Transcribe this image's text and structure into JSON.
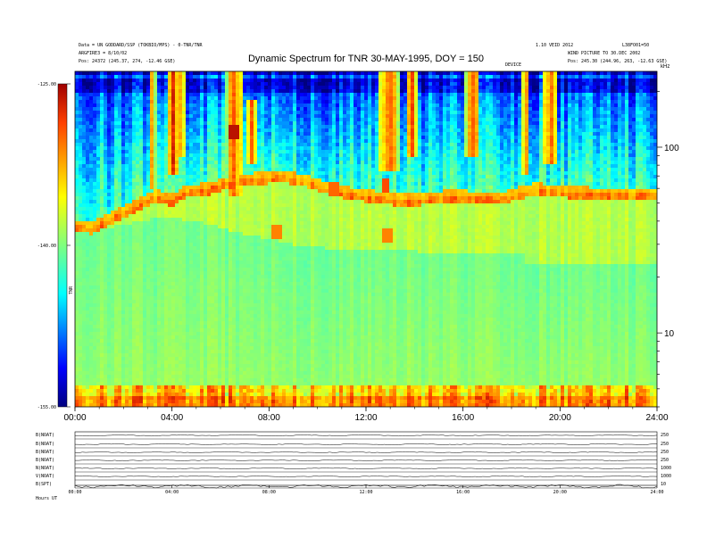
{
  "header": {
    "title": "Dynamic Spectrum for TNR 30-MAY-1995, DOY = 150",
    "left_line1": "Data = UN GODDARD/SSP (TOKBIO/MPS) - 0-TNR/TNR",
    "left_line2": "ARGFIRE3 = 8/10/02",
    "left_line3": "Pos: 24372 (245.37, 274, -12.46 GSE)",
    "right_line1": "1.10 VEID 2012",
    "right_line1b": "L38FO01=50",
    "right_line2": "WIND PICTURE TO 30.DEC 2002",
    "right_line3": "Pos: 245.30 (244.96, 263, -12.63 GSE)",
    "center_small": "DEVICE"
  },
  "colorbar": {
    "ticks": [
      "-125.00",
      "-140.00",
      "-155.00"
    ],
    "label": "TNR"
  },
  "freq_axis": {
    "unit": "kHz",
    "ticks": [
      "100",
      "10"
    ]
  },
  "chart_data": {
    "type": "heatmap",
    "title": "Dynamic Spectrum for TNR 30-MAY-1995, DOY = 150",
    "x_ticks": [
      "00:00",
      "04:00",
      "08:00",
      "12:00",
      "16:00",
      "20:00",
      "24:00"
    ],
    "x_range_hours": [
      0,
      24
    ],
    "y_scale": "log",
    "y_unit": "kHz",
    "y_range_khz": [
      4,
      256
    ],
    "y_ticks": [
      100,
      10
    ],
    "color_range_db": [
      -155,
      -125
    ],
    "colorbar_ticks": [
      -125,
      -140,
      -155
    ],
    "background_boundary_khz": [
      [
        0.0,
        38
      ],
      [
        0.7,
        37
      ],
      [
        1.5,
        42
      ],
      [
        2.5,
        48
      ],
      [
        3.3,
        55
      ],
      [
        4.0,
        52
      ],
      [
        4.6,
        58
      ],
      [
        5.5,
        60
      ],
      [
        6.5,
        66
      ],
      [
        7.5,
        68
      ],
      [
        8.5,
        70
      ],
      [
        9.5,
        66
      ],
      [
        10.5,
        60
      ],
      [
        11.5,
        56
      ],
      [
        12.5,
        54
      ],
      [
        13.5,
        52
      ],
      [
        14.5,
        53
      ],
      [
        15.5,
        55
      ],
      [
        16.5,
        54
      ],
      [
        17.5,
        53
      ],
      [
        18.6,
        58
      ],
      [
        19.0,
        60
      ],
      [
        20.0,
        58
      ],
      [
        22.0,
        56
      ],
      [
        24.0,
        56
      ]
    ],
    "lower_band_khz": [
      [
        0.0,
        35
      ],
      [
        2.0,
        38
      ],
      [
        3.5,
        42
      ],
      [
        5.0,
        40
      ],
      [
        7.0,
        34
      ],
      [
        9.0,
        30
      ],
      [
        11.0,
        28
      ],
      [
        13.0,
        28
      ],
      [
        15.0,
        27
      ],
      [
        18.5,
        27
      ],
      [
        18.6,
        24
      ],
      [
        20.0,
        24
      ],
      [
        24.0,
        24
      ]
    ],
    "bursts": [
      {
        "t": 3.2,
        "f_lo": 60,
        "f_hi": 256,
        "w": 0.12
      },
      {
        "t": 4.05,
        "f_lo": 70,
        "f_hi": 256,
        "w": 0.25
      },
      {
        "t": 4.4,
        "f_lo": 90,
        "f_hi": 256,
        "w": 0.1
      },
      {
        "t": 6.6,
        "f_lo": 55,
        "f_hi": 256,
        "w": 0.35
      },
      {
        "t": 7.3,
        "f_lo": 80,
        "f_hi": 180,
        "w": 0.2
      },
      {
        "t": 12.95,
        "f_lo": 75,
        "f_hi": 256,
        "w": 0.4
      },
      {
        "t": 13.9,
        "f_lo": 90,
        "f_hi": 256,
        "w": 0.2
      },
      {
        "t": 16.4,
        "f_lo": 90,
        "f_hi": 256,
        "w": 0.3
      },
      {
        "t": 18.6,
        "f_lo": 70,
        "f_hi": 256,
        "w": 0.15
      },
      {
        "t": 19.6,
        "f_lo": 80,
        "f_hi": 256,
        "w": 0.3
      }
    ],
    "hot_spots": [
      {
        "t": 6.6,
        "f": 120,
        "db": -126
      },
      {
        "t": 10.7,
        "f": 60,
        "db": -130
      },
      {
        "t": 12.8,
        "f": 62,
        "db": -129
      },
      {
        "t": 12.9,
        "f": 33,
        "db": -131
      },
      {
        "t": 8.3,
        "f": 35,
        "db": -131
      }
    ]
  },
  "strip_panels": {
    "labels": [
      "B(NOAT)",
      "B(NOAT)",
      "B(NOAT)",
      "B(NOAT)",
      "N(NOAT)",
      "V(NOAT)",
      "B(SPT)"
    ],
    "right_labels": [
      "250",
      "250",
      "250",
      "250",
      "1000",
      "1000",
      "10"
    ],
    "x_ticks": [
      "00:00",
      "04:00",
      "08:00",
      "12:00",
      "16:00",
      "20:00",
      "24:00"
    ],
    "footer_left": "Hours UT"
  }
}
